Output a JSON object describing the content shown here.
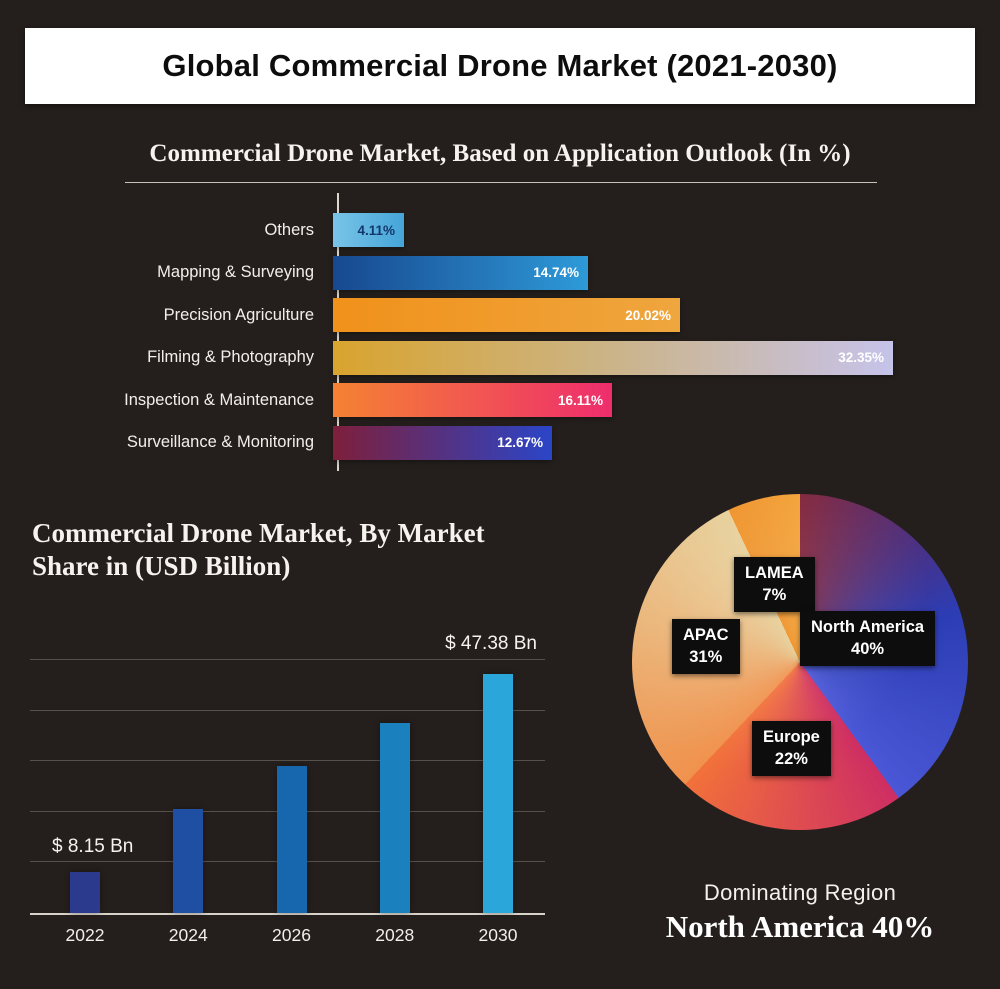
{
  "header": {
    "title": "Global Commercial Drone Market  (2021-2030)"
  },
  "chart_data": [
    {
      "id": "application-outlook",
      "type": "bar",
      "orientation": "horizontal",
      "title": "Commercial Drone Market, Based on Application Outlook (In %)",
      "unit": "%",
      "categories": [
        "Others",
        "Mapping & Surveying",
        "Precision Agriculture",
        "Filming & Photography",
        "Inspection & Maintenance",
        "Surveillance & Monitoring"
      ],
      "values": [
        4.11,
        14.74,
        20.02,
        32.35,
        16.11,
        12.67
      ],
      "value_labels": [
        "4.11%",
        "14.74%",
        "20.02%",
        "32.35%",
        "16.11%",
        "12.67%"
      ],
      "xlim": [
        0,
        32.35
      ],
      "bar_gradients": [
        [
          "#79c4e8",
          "#45a5d8"
        ],
        [
          "#17488f",
          "#2e9ad8"
        ],
        [
          "#f0911b",
          "#efa63e"
        ],
        [
          "#d9a42e",
          "#cbb489",
          "#c6c3ea"
        ],
        [
          "#f58233",
          "#ee2d6d"
        ],
        [
          "#7e1f3b",
          "#2b45c8"
        ]
      ],
      "value_label_colors": [
        "#12386b",
        "#ffffff",
        "#ffffff",
        "#ffffff",
        "#ffffff",
        "#ffffff"
      ]
    },
    {
      "id": "market-size",
      "type": "bar",
      "orientation": "vertical",
      "title": "Commercial Drone Market, By Market Share in (USD Billion)",
      "title_lines": [
        "Commercial Drone Market, By Market",
        "Share in (USD Billion)"
      ],
      "categories": [
        "2022",
        "2024",
        "2026",
        "2028",
        "2030"
      ],
      "values": [
        8.15,
        20.5,
        29,
        37.5,
        47.38
      ],
      "annotations": {
        "first_bar": "$ 8.15 Bn",
        "last_bar": "$ 47.38 Bn"
      },
      "ylim": [
        0,
        55
      ],
      "grid": true,
      "bar_colors": [
        "#2c3a8e",
        "#1e4fa2",
        "#1767ae",
        "#1b80be",
        "#2aa6da"
      ]
    },
    {
      "id": "regional-share",
      "type": "pie",
      "start_angle_deg": 0,
      "slices": [
        {
          "label": "North America",
          "value": 40,
          "value_label": "40%",
          "colors": [
            "#7c1c33",
            "#2c3db4",
            "#4a57d6"
          ]
        },
        {
          "label": "Europe",
          "value": 22,
          "value_label": "22%",
          "colors": [
            "#ce2e63",
            "#f2713a"
          ]
        },
        {
          "label": "APAC",
          "value": 31,
          "value_label": "31%",
          "colors": [
            "#f0924d",
            "#e5cd94"
          ]
        },
        {
          "label": "LAMEA",
          "value": 7,
          "value_label": "7%",
          "colors": [
            "#ee8c1e",
            "#f29e2f"
          ]
        }
      ]
    }
  ],
  "dominating": {
    "label": "Dominating Region",
    "value": "North America 40%"
  },
  "colors": {
    "background": "#241f1d",
    "header_bg": "#ffffff",
    "tag_bg": "#0d0d0d",
    "text": "#f5f2ec"
  }
}
